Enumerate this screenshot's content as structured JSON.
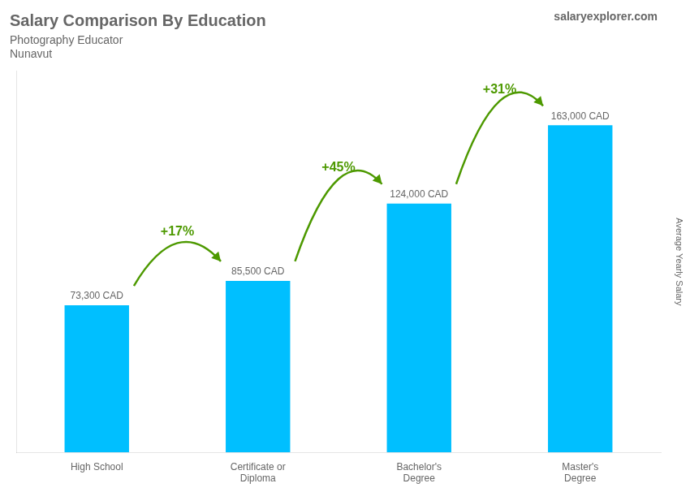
{
  "chart_data": {
    "type": "bar",
    "title": "Salary Comparison By Education",
    "subtitle": [
      "Photography Educator",
      "Nunavut"
    ],
    "categories": [
      "High School",
      "Certificate or\nDiploma",
      "Bachelor's\nDegree",
      "Master's\nDegree"
    ],
    "values": [
      73300,
      85500,
      124000,
      163000
    ],
    "value_labels": [
      "73,300 CAD",
      "85,500 CAD",
      "124,000 CAD",
      "163,000 CAD"
    ],
    "data_labels": true,
    "color": "#00bfff",
    "ylim": [
      0,
      190000
    ],
    "grid": false,
    "tick_labels": "x",
    "annotations": [
      {
        "text": "+17%",
        "from": "High School",
        "to": "Certificate or\nDiploma"
      },
      {
        "text": "+45%",
        "from": "Certificate or\nDiploma",
        "to": "Bachelor's\nDegree"
      },
      {
        "text": "+31%",
        "from": "Bachelor's\nDegree",
        "to": "Master's\nDegree"
      },
      {
        "text": "salaryexplorer.com"
      },
      {
        "text": "Average Yearly Salary"
      }
    ]
  }
}
